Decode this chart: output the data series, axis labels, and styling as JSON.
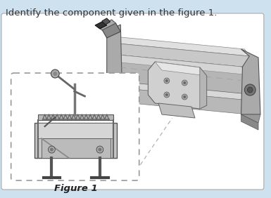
{
  "title_text": "Identify the component given in the figure 1.",
  "caption_text": "Figure 1",
  "background_color": "#cde2ee",
  "panel_color": "#ffffff",
  "title_fontsize": 9.5,
  "caption_fontsize": 9.5,
  "fig_width": 3.85,
  "fig_height": 2.82,
  "dpi": 100
}
